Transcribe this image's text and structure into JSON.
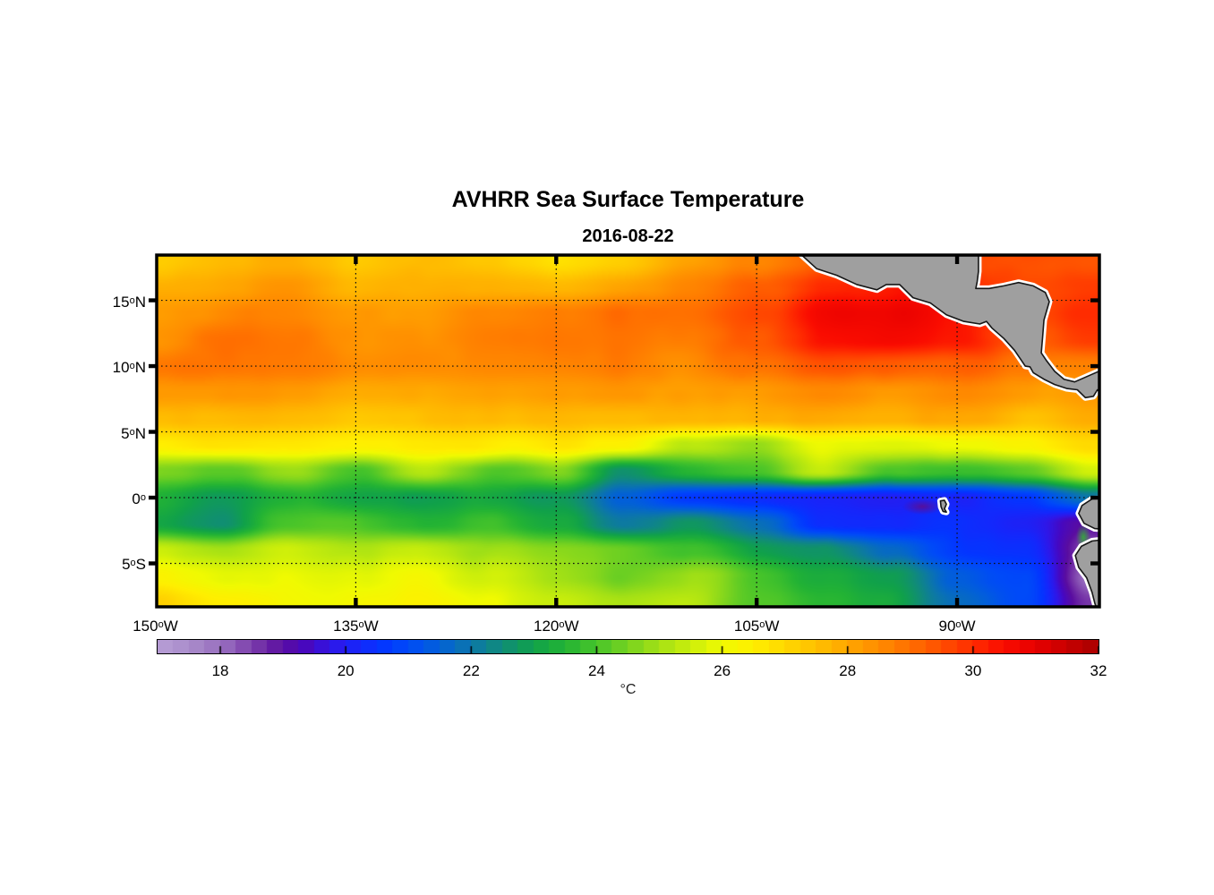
{
  "chart": {
    "title": "AVHRR Sea Surface Temperature",
    "date": "2016-08-22",
    "units": "°C"
  },
  "chart_data": {
    "type": "heatmap",
    "title": "AVHRR Sea Surface Temperature",
    "subtitle": "2016-08-22",
    "xlabel_ticks": [
      {
        "value": "150",
        "dir": "W",
        "lon": -150
      },
      {
        "value": "135",
        "dir": "W",
        "lon": -135
      },
      {
        "value": "120",
        "dir": "W",
        "lon": -120
      },
      {
        "value": "105",
        "dir": "W",
        "lon": -105
      },
      {
        "value": "90",
        "dir": "W",
        "lon": -90
      }
    ],
    "ylabel_ticks": [
      {
        "value": "15",
        "dir": "N",
        "lat": 15
      },
      {
        "value": "10",
        "dir": "N",
        "lat": 10
      },
      {
        "value": "5",
        "dir": "N",
        "lat": 5
      },
      {
        "value": "0",
        "dir": "",
        "lat": 0
      },
      {
        "value": "5",
        "dir": "S",
        "lat": -5
      }
    ],
    "extent": {
      "lon_min": -149.9,
      "lon_max": -79.35,
      "lat_min": -8.3,
      "lat_max": 18.44
    },
    "gridlines": {
      "lats": [
        15,
        10,
        5,
        0,
        -5
      ],
      "lons": [
        -135,
        -120,
        -105,
        -90
      ]
    },
    "grid": {
      "lons": [
        -150,
        -145,
        -140,
        -135,
        -130,
        -125,
        -120,
        -115,
        -110,
        -105,
        -100,
        -95,
        -90,
        -85,
        -80
      ],
      "lats": [
        18,
        16,
        14,
        12,
        10,
        8,
        6,
        4,
        2,
        0,
        -2,
        -4,
        -6,
        -8
      ],
      "sst": [
        [
          27.4,
          27.6,
          27.8,
          27.2,
          27.6,
          27.3,
          26.9,
          27.3,
          28.2,
          28.6,
          29.2,
          29.6,
          29.6,
          29.5,
          29.3
        ],
        [
          27.8,
          28.0,
          28.3,
          27.6,
          27.8,
          27.7,
          27.6,
          28.0,
          28.6,
          29.3,
          29.9,
          30.4,
          30.1,
          29.7,
          29.7
        ],
        [
          28.1,
          28.6,
          28.6,
          28.2,
          28.1,
          28.4,
          28.6,
          28.9,
          28.9,
          29.6,
          30.6,
          30.9,
          30.4,
          29.7,
          29.9
        ],
        [
          28.4,
          29.0,
          28.8,
          28.3,
          28.3,
          28.6,
          28.8,
          28.8,
          28.8,
          29.3,
          30.3,
          30.7,
          30.4,
          29.4,
          29.7
        ],
        [
          29.0,
          28.9,
          28.7,
          28.5,
          28.4,
          28.5,
          28.6,
          28.7,
          28.6,
          28.9,
          29.4,
          29.4,
          29.3,
          28.9,
          28.7
        ],
        [
          28.3,
          28.3,
          28.2,
          28.0,
          28.0,
          28.1,
          28.2,
          28.2,
          28.2,
          28.2,
          28.4,
          28.4,
          28.5,
          28.3,
          28.2
        ],
        [
          27.6,
          27.7,
          27.6,
          27.4,
          27.6,
          27.6,
          27.7,
          27.6,
          27.8,
          27.7,
          27.8,
          27.9,
          28.0,
          27.6,
          27.9
        ],
        [
          26.6,
          26.8,
          26.7,
          26.5,
          26.6,
          26.6,
          26.7,
          26.3,
          25.3,
          24.7,
          26.0,
          25.7,
          25.9,
          26.3,
          27.0
        ],
        [
          24.7,
          24.2,
          25.0,
          24.0,
          25.2,
          24.1,
          24.6,
          22.5,
          23.6,
          23.9,
          25.5,
          23.9,
          23.7,
          24.1,
          25.6
        ],
        [
          23.4,
          22.9,
          23.5,
          23.2,
          23.0,
          23.3,
          22.8,
          21.5,
          20.7,
          20.4,
          20.2,
          20.0,
          20.1,
          20.7,
          22.0
        ],
        [
          23.1,
          22.7,
          24.0,
          24.2,
          23.6,
          24.0,
          23.2,
          22.1,
          22.8,
          22.0,
          20.4,
          20.2,
          20.4,
          20.2,
          19.0
        ],
        [
          25.4,
          25.0,
          25.6,
          25.2,
          25.4,
          25.0,
          24.6,
          24.4,
          24.0,
          23.0,
          22.6,
          21.6,
          20.6,
          20.4,
          18.4
        ],
        [
          26.2,
          25.8,
          26.0,
          25.8,
          26.0,
          25.6,
          24.8,
          24.4,
          25.0,
          24.0,
          23.2,
          22.8,
          21.4,
          20.8,
          18.0
        ],
        [
          27.2,
          26.4,
          26.2,
          26.0,
          26.2,
          26.0,
          25.4,
          25.0,
          25.2,
          24.2,
          23.6,
          23.2,
          21.8,
          21.0,
          18.6
        ]
      ]
    },
    "colorbar": {
      "min": 17,
      "max": 32,
      "segment": 0.25,
      "ticks": [
        "18",
        "20",
        "22",
        "24",
        "26",
        "28",
        "30",
        "32"
      ],
      "unit": "°C",
      "stops": [
        [
          17.0,
          "#b89fd6"
        ],
        [
          17.6,
          "#a788c9"
        ],
        [
          18.1,
          "#9569bd"
        ],
        [
          18.6,
          "#7635a8"
        ],
        [
          19.0,
          "#5a0da0"
        ],
        [
          19.4,
          "#4708c0"
        ],
        [
          19.8,
          "#2f17e8"
        ],
        [
          20.2,
          "#1626fb"
        ],
        [
          20.6,
          "#0336ff"
        ],
        [
          21.0,
          "#004af8"
        ],
        [
          21.5,
          "#0260d8"
        ],
        [
          22.0,
          "#0c76aa"
        ],
        [
          22.5,
          "#108c78"
        ],
        [
          23.0,
          "#10a14a"
        ],
        [
          23.5,
          "#23b334"
        ],
        [
          24.0,
          "#47c42a"
        ],
        [
          24.5,
          "#76d220"
        ],
        [
          25.0,
          "#a5e115"
        ],
        [
          25.5,
          "#caee0b"
        ],
        [
          26.0,
          "#f0fa01"
        ],
        [
          26.5,
          "#ffef00"
        ],
        [
          27.0,
          "#ffd800"
        ],
        [
          27.5,
          "#ffc000"
        ],
        [
          28.0,
          "#ffa700"
        ],
        [
          28.5,
          "#ff8c00"
        ],
        [
          29.0,
          "#ff6f00"
        ],
        [
          29.5,
          "#ff4f00"
        ],
        [
          30.0,
          "#ff2c00"
        ],
        [
          30.5,
          "#fa0c00"
        ],
        [
          31.0,
          "#e70000"
        ],
        [
          31.5,
          "#c80000"
        ],
        [
          32.0,
          "#a80000"
        ]
      ]
    },
    "land": {
      "fill": "#9f9f9f",
      "outline": "#161616",
      "halo": "#ffffff",
      "polygons": {
        "central_america": [
          [
            -101.8,
            18.6
          ],
          [
            -100.5,
            17.4
          ],
          [
            -99.0,
            16.9
          ],
          [
            -97.5,
            16.2
          ],
          [
            -96.0,
            15.8
          ],
          [
            -95.3,
            16.2
          ],
          [
            -94.3,
            16.2
          ],
          [
            -93.3,
            15.2
          ],
          [
            -92.0,
            14.8
          ],
          [
            -90.8,
            13.9
          ],
          [
            -89.5,
            13.4
          ],
          [
            -88.3,
            13.2
          ],
          [
            -87.8,
            13.4
          ],
          [
            -87.4,
            12.9
          ],
          [
            -86.5,
            12.1
          ],
          [
            -85.7,
            11.2
          ],
          [
            -85.3,
            10.6
          ],
          [
            -84.9,
            10.0
          ],
          [
            -84.55,
            9.95
          ],
          [
            -84.3,
            9.5
          ],
          [
            -83.5,
            9.0
          ],
          [
            -82.7,
            8.6
          ],
          [
            -81.8,
            8.3
          ],
          [
            -81.0,
            8.2
          ],
          [
            -80.4,
            7.6
          ],
          [
            -79.8,
            7.7
          ],
          [
            -79.5,
            8.2
          ],
          [
            -79.1,
            7.9
          ],
          [
            -78.3,
            8.1
          ],
          [
            -78.3,
            9.2
          ],
          [
            -79.4,
            9.6
          ],
          [
            -80.3,
            9.2
          ],
          [
            -81.2,
            8.8
          ],
          [
            -82.0,
            9.0
          ],
          [
            -82.7,
            9.6
          ],
          [
            -83.3,
            10.4
          ],
          [
            -83.7,
            11.0
          ],
          [
            -83.6,
            12.2
          ],
          [
            -83.5,
            13.5
          ],
          [
            -83.1,
            14.9
          ],
          [
            -83.4,
            15.6
          ],
          [
            -84.3,
            16.1
          ],
          [
            -85.4,
            16.35
          ],
          [
            -86.5,
            16.1
          ],
          [
            -87.6,
            15.9
          ],
          [
            -88.6,
            15.9
          ],
          [
            -88.5,
            16.4
          ],
          [
            -88.4,
            17.2
          ],
          [
            -88.4,
            18.6
          ]
        ],
        "ecuador": [
          [
            -78.3,
            -0.05
          ],
          [
            -79.9,
            -0.1
          ],
          [
            -80.65,
            -0.6
          ],
          [
            -80.9,
            -1.2
          ],
          [
            -80.5,
            -1.95
          ],
          [
            -79.7,
            -2.35
          ],
          [
            -78.3,
            -2.45
          ]
        ],
        "peru": [
          [
            -78.3,
            -3.1
          ],
          [
            -79.9,
            -3.3
          ],
          [
            -80.7,
            -3.7
          ],
          [
            -81.15,
            -4.4
          ],
          [
            -80.9,
            -5.3
          ],
          [
            -80.3,
            -6.1
          ],
          [
            -79.9,
            -7.2
          ],
          [
            -79.7,
            -8.0
          ],
          [
            -79.5,
            -8.6
          ],
          [
            -78.3,
            -8.6
          ]
        ],
        "galapagos": [
          [
            -91.25,
            -0.25
          ],
          [
            -90.95,
            -0.2
          ],
          [
            -90.8,
            -0.5
          ],
          [
            -90.95,
            -0.85
          ],
          [
            -90.8,
            -1.1
          ],
          [
            -91.05,
            -1.05
          ],
          [
            -91.2,
            -0.7
          ]
        ]
      }
    },
    "features": [
      {
        "name": "galapagos-cold-wake",
        "lon": -92.6,
        "lat": -0.68,
        "rx_deg": 1.5,
        "ry_deg": 0.62,
        "core": "#5c0d93",
        "alpha": 0.9
      },
      {
        "name": "guayaquil-green-strip",
        "lon": -80.55,
        "lat": -3.0,
        "rx_deg": 0.55,
        "ry_deg": 1.0,
        "core": "#2db82d",
        "alpha": 0.85
      }
    ],
    "noise": {
      "amp1": 0.34,
      "wl1": 58,
      "amp2": 0.14,
      "wl2": 23
    }
  }
}
